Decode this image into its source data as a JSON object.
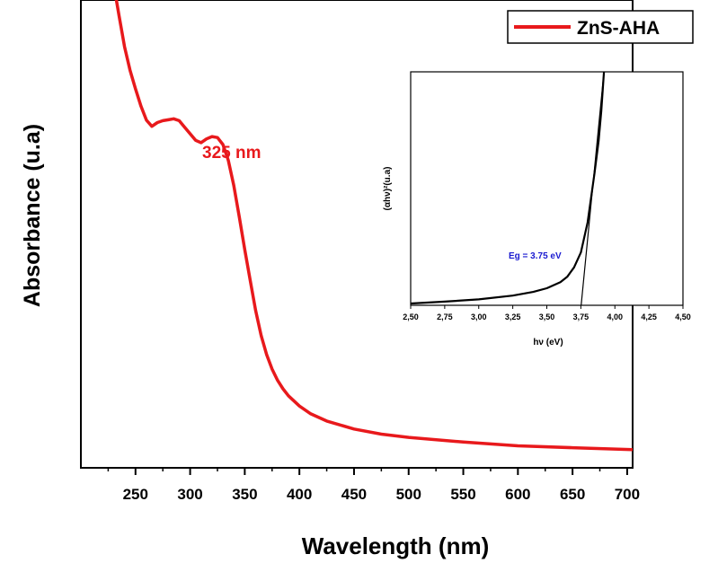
{
  "chart_data": [
    {
      "type": "line",
      "title": "",
      "xlabel": "Wavelength (nm)",
      "ylabel": "Absorbance (u.a)",
      "xlim": [
        200,
        705
      ],
      "ylim": [
        0,
        1
      ],
      "x_ticks": [
        "250",
        "300",
        "350",
        "400",
        "450",
        "500",
        "550",
        "600",
        "650",
        "700"
      ],
      "y_ticks_shown": false,
      "legend": {
        "entries": [
          "ZnS-AHA"
        ],
        "placement": "top-right"
      },
      "annotations": [
        {
          "text": "325 nm",
          "x": 320,
          "y": 0.825,
          "color": "#e8191c"
        }
      ],
      "series": [
        {
          "name": "ZnS-AHA",
          "color": "#e8191c",
          "points": [
            [
              231,
              1.02
            ],
            [
              235,
              0.965
            ],
            [
              240,
              0.9
            ],
            [
              245,
              0.85
            ],
            [
              250,
              0.81
            ],
            [
              255,
              0.773
            ],
            [
              260,
              0.743
            ],
            [
              265,
              0.73
            ],
            [
              270,
              0.738
            ],
            [
              275,
              0.742
            ],
            [
              280,
              0.744
            ],
            [
              285,
              0.746
            ],
            [
              290,
              0.742
            ],
            [
              295,
              0.728
            ],
            [
              300,
              0.714
            ],
            [
              305,
              0.7
            ],
            [
              310,
              0.695
            ],
            [
              315,
              0.703
            ],
            [
              320,
              0.708
            ],
            [
              325,
              0.706
            ],
            [
              330,
              0.691
            ],
            [
              335,
              0.657
            ],
            [
              340,
              0.603
            ],
            [
              345,
              0.536
            ],
            [
              350,
              0.466
            ],
            [
              355,
              0.4
            ],
            [
              360,
              0.336
            ],
            [
              365,
              0.283
            ],
            [
              370,
              0.242
            ],
            [
              375,
              0.211
            ],
            [
              380,
              0.187
            ],
            [
              385,
              0.169
            ],
            [
              390,
              0.154
            ],
            [
              400,
              0.132
            ],
            [
              410,
              0.116
            ],
            [
              425,
              0.1
            ],
            [
              450,
              0.083
            ],
            [
              475,
              0.072
            ],
            [
              500,
              0.065
            ],
            [
              550,
              0.055
            ],
            [
              600,
              0.047
            ],
            [
              650,
              0.043
            ],
            [
              705,
              0.039
            ]
          ]
        }
      ]
    },
    {
      "type": "line",
      "title": "",
      "xlabel": "hν (eV)",
      "ylabel": "(αhν)²(u.a)",
      "xlim": [
        2.5,
        4.5
      ],
      "ylim": [
        0,
        1
      ],
      "x_ticks": [
        "2,50",
        "2,75",
        "3,00",
        "3,25",
        "3,50",
        "3,75",
        "4,00",
        "4,25",
        "4,50"
      ],
      "y_ticks_shown": false,
      "annotations": [
        {
          "text": "Eg = 3.75 eV",
          "x": 3.0,
          "y": 0.24,
          "color": "#1a1ad0"
        }
      ],
      "series": [
        {
          "color": "#000000",
          "points": [
            [
              2.5,
              0.0
            ],
            [
              2.75,
              0.008
            ],
            [
              3.0,
              0.018
            ],
            [
              3.25,
              0.034
            ],
            [
              3.4,
              0.05
            ],
            [
              3.5,
              0.066
            ],
            [
              3.6,
              0.092
            ],
            [
              3.65,
              0.115
            ],
            [
              3.7,
              0.156
            ],
            [
              3.75,
              0.22
            ],
            [
              3.8,
              0.35
            ],
            [
              3.85,
              0.56
            ],
            [
              3.88,
              0.7
            ],
            [
              3.9,
              0.83
            ],
            [
              3.92,
              1.0
            ]
          ]
        },
        {
          "color": "#000000",
          "points": [
            [
              3.75,
              -0.02
            ],
            [
              3.92,
              1.0
            ]
          ]
        }
      ]
    }
  ]
}
